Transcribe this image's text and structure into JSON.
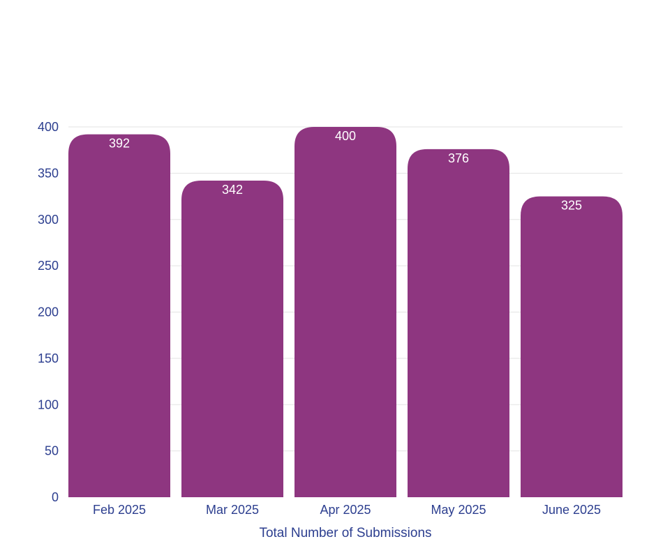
{
  "colors": {
    "bar": "#8e3680",
    "text": "#2c3e8f",
    "grid": "#e3e3e3",
    "data_label": "#ffffff"
  },
  "chart_data": {
    "type": "bar",
    "categories": [
      "Feb 2025",
      "Mar 2025",
      "Apr 2025",
      "May 2025",
      "June 2025"
    ],
    "values": [
      392,
      342,
      400,
      376,
      325
    ],
    "data_labels": [
      "392",
      "342",
      "400",
      "376",
      "325"
    ],
    "title": "",
    "xlabel": "Total Number of Submissions",
    "ylabel": "",
    "ylim": [
      0,
      400
    ],
    "yticks": [
      0,
      50,
      100,
      150,
      200,
      250,
      300,
      350,
      400
    ],
    "ytick_labels": [
      "0",
      "50",
      "100",
      "150",
      "200",
      "250",
      "300",
      "350",
      "400"
    ],
    "grid": true,
    "legend": "none"
  }
}
